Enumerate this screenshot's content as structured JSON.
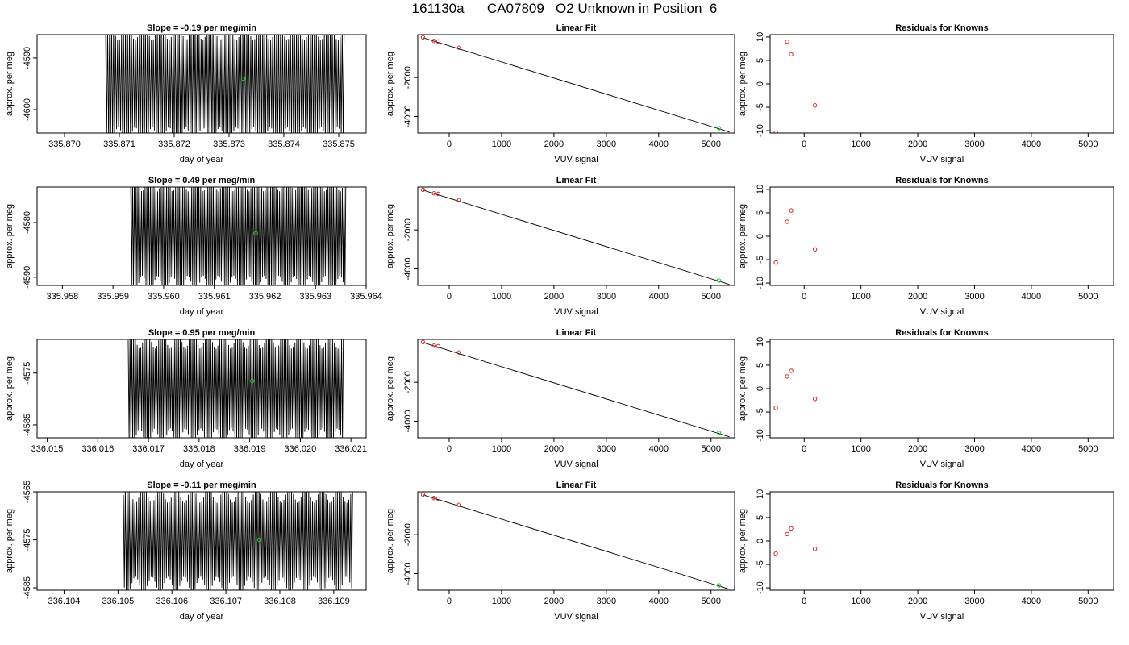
{
  "figure": {
    "title": "161130a      CA07809   O2 Unknown in Position  6"
  },
  "colors": {
    "trace": "#000000",
    "known_points": "#d62728",
    "unknown_point": "#22cc22",
    "fit_line": "#000000"
  },
  "chart_data": [
    {
      "type": "line",
      "title": "Slope =  -0.19  per meg/min",
      "xlabel": "day of year",
      "ylabel": "approx. per meg",
      "xlim": [
        335.8695,
        335.8755
      ],
      "ylim": [
        -4604.5,
        -4585.5
      ],
      "xticks": [
        {
          "v": 335.87,
          "label": "335.870"
        },
        {
          "v": 335.871,
          "label": "335.871"
        },
        {
          "v": 335.872,
          "label": "335.872"
        },
        {
          "v": 335.873,
          "label": "335.873"
        },
        {
          "v": 335.874,
          "label": "335.874"
        },
        {
          "v": 335.875,
          "label": "335.875"
        }
      ],
      "yticks": [
        {
          "v": -4590,
          "label": "-4590"
        },
        {
          "v": -4600,
          "label": "-4600"
        }
      ],
      "trace": {
        "x_start": 335.87075,
        "x_end": 335.8751,
        "cycles": 120,
        "center": -4595,
        "amplitude": 12,
        "note": "oscillating trace clipped at plot edges"
      },
      "unknown_point": {
        "x": 335.87326,
        "y": -4594.0
      }
    },
    {
      "type": "scatter",
      "title": "Linear Fit",
      "xlabel": "VUV signal",
      "ylabel": "approx. per meg",
      "xlim": [
        -600,
        5450
      ],
      "ylim": [
        -4850,
        200
      ],
      "xticks": [
        {
          "v": 0,
          "label": "0"
        },
        {
          "v": 1000,
          "label": "1000"
        },
        {
          "v": 2000,
          "label": "2000"
        },
        {
          "v": 3000,
          "label": "3000"
        },
        {
          "v": 4000,
          "label": "4000"
        },
        {
          "v": 5000,
          "label": "5000"
        }
      ],
      "yticks": [
        {
          "v": -2000,
          "label": "-2000"
        },
        {
          "v": -4000,
          "label": "-4000"
        }
      ],
      "fit_line": {
        "x": [
          -500,
          5350
        ],
        "y": [
          40,
          -4800
        ]
      },
      "knowns": {
        "x": [
          -500,
          -290,
          -210,
          190
        ],
        "y": [
          60,
          -120,
          -150,
          -470
        ]
      },
      "unknown_point": {
        "x": 5150,
        "y": -4600
      }
    },
    {
      "type": "scatter",
      "title": "Residuals for Knowns",
      "xlabel": "VUV signal",
      "ylabel": "approx. per meg",
      "xlim": [
        -600,
        5450
      ],
      "ylim": [
        -10.5,
        10.5
      ],
      "xticks": [
        {
          "v": 0,
          "label": "0"
        },
        {
          "v": 1000,
          "label": "1000"
        },
        {
          "v": 2000,
          "label": "2000"
        },
        {
          "v": 3000,
          "label": "3000"
        },
        {
          "v": 4000,
          "label": "4000"
        },
        {
          "v": 5000,
          "label": "5000"
        }
      ],
      "yticks": [
        {
          "v": 10,
          "label": "10"
        },
        {
          "v": 5,
          "label": "5"
        },
        {
          "v": 0,
          "label": "0"
        },
        {
          "v": -5,
          "label": "-5"
        },
        {
          "v": -10,
          "label": "-10"
        }
      ],
      "knowns": {
        "x": [
          -500,
          -300,
          -230,
          190
        ],
        "y": [
          -10.4,
          9.0,
          6.3,
          -4.6
        ]
      }
    },
    {
      "type": "line",
      "title": "Slope =  0.49  per meg/min",
      "xlabel": "day of year",
      "ylabel": "approx. per meg",
      "xlim": [
        335.9575,
        335.964
      ],
      "ylim": [
        -4591.5,
        -4573.5
      ],
      "xticks": [
        {
          "v": 335.958,
          "label": "335.958"
        },
        {
          "v": 335.959,
          "label": "335.959"
        },
        {
          "v": 335.96,
          "label": "335.960"
        },
        {
          "v": 335.961,
          "label": "335.961"
        },
        {
          "v": 335.962,
          "label": "335.962"
        },
        {
          "v": 335.963,
          "label": "335.963"
        },
        {
          "v": 335.964,
          "label": "335.964"
        }
      ],
      "yticks": [
        {
          "v": -4580,
          "label": "-4580"
        },
        {
          "v": -4590,
          "label": "-4590"
        }
      ],
      "trace": {
        "x_start": 335.95935,
        "x_end": 335.9636,
        "cycles": 120,
        "center": -4582,
        "amplitude": 11,
        "note": "oscillating trace clipped at plot edges"
      },
      "unknown_point": {
        "x": 335.96182,
        "y": -4582.0
      }
    },
    {
      "type": "scatter",
      "title": "Linear Fit",
      "xlabel": "VUV signal",
      "ylabel": "approx. per meg",
      "xlim": [
        -600,
        5450
      ],
      "ylim": [
        -4850,
        200
      ],
      "xticks": [
        {
          "v": 0,
          "label": "0"
        },
        {
          "v": 1000,
          "label": "1000"
        },
        {
          "v": 2000,
          "label": "2000"
        },
        {
          "v": 3000,
          "label": "3000"
        },
        {
          "v": 4000,
          "label": "4000"
        },
        {
          "v": 5000,
          "label": "5000"
        }
      ],
      "yticks": [
        {
          "v": -2000,
          "label": "-2000"
        },
        {
          "v": -4000,
          "label": "-4000"
        }
      ],
      "fit_line": {
        "x": [
          -500,
          5350
        ],
        "y": [
          40,
          -4800
        ]
      },
      "knowns": {
        "x": [
          -500,
          -290,
          -210,
          190
        ],
        "y": [
          60,
          -120,
          -150,
          -470
        ]
      },
      "unknown_point": {
        "x": 5150,
        "y": -4600
      }
    },
    {
      "type": "scatter",
      "title": "Residuals for Knowns",
      "xlabel": "VUV signal",
      "ylabel": "approx. per meg",
      "xlim": [
        -600,
        5450
      ],
      "ylim": [
        -10.5,
        10.5
      ],
      "xticks": [
        {
          "v": 0,
          "label": "0"
        },
        {
          "v": 1000,
          "label": "1000"
        },
        {
          "v": 2000,
          "label": "2000"
        },
        {
          "v": 3000,
          "label": "3000"
        },
        {
          "v": 4000,
          "label": "4000"
        },
        {
          "v": 5000,
          "label": "5000"
        }
      ],
      "yticks": [
        {
          "v": 10,
          "label": "10"
        },
        {
          "v": 5,
          "label": "5"
        },
        {
          "v": 0,
          "label": "0"
        },
        {
          "v": -5,
          "label": "-5"
        },
        {
          "v": -10,
          "label": "-10"
        }
      ],
      "knowns": {
        "x": [
          -500,
          -300,
          -230,
          190
        ],
        "y": [
          -5.6,
          3.1,
          5.5,
          -2.8
        ]
      }
    },
    {
      "type": "line",
      "title": "Slope =  0.95  per meg/min",
      "xlabel": "day of year",
      "ylabel": "approx. per meg",
      "xlim": [
        336.0148,
        336.0213
      ],
      "ylim": [
        -4587.5,
        -4568.5
      ],
      "xticks": [
        {
          "v": 336.015,
          "label": "336.015"
        },
        {
          "v": 336.016,
          "label": "336.016"
        },
        {
          "v": 336.017,
          "label": "336.017"
        },
        {
          "v": 336.018,
          "label": "336.018"
        },
        {
          "v": 336.019,
          "label": "336.019"
        },
        {
          "v": 336.02,
          "label": "336.020"
        },
        {
          "v": 336.021,
          "label": "336.021"
        }
      ],
      "yticks": [
        {
          "v": -4575,
          "label": "-4575"
        },
        {
          "v": -4585,
          "label": "-4585"
        }
      ],
      "trace": {
        "x_start": 336.0166,
        "x_end": 336.02085,
        "cycles": 120,
        "center": -4578,
        "amplitude": 11,
        "note": "oscillating trace clipped at plot edges"
      },
      "unknown_point": {
        "x": 336.01905,
        "y": -4576.5
      }
    },
    {
      "type": "scatter",
      "title": "Linear Fit",
      "xlabel": "VUV signal",
      "ylabel": "approx. per meg",
      "xlim": [
        -600,
        5450
      ],
      "ylim": [
        -4850,
        200
      ],
      "xticks": [
        {
          "v": 0,
          "label": "0"
        },
        {
          "v": 1000,
          "label": "1000"
        },
        {
          "v": 2000,
          "label": "2000"
        },
        {
          "v": 3000,
          "label": "3000"
        },
        {
          "v": 4000,
          "label": "4000"
        },
        {
          "v": 5000,
          "label": "5000"
        }
      ],
      "yticks": [
        {
          "v": -2000,
          "label": "-2000"
        },
        {
          "v": -4000,
          "label": "-4000"
        }
      ],
      "fit_line": {
        "x": [
          -500,
          5350
        ],
        "y": [
          40,
          -4800
        ]
      },
      "knowns": {
        "x": [
          -500,
          -290,
          -210,
          190
        ],
        "y": [
          60,
          -120,
          -150,
          -470
        ]
      },
      "unknown_point": {
        "x": 5150,
        "y": -4600
      }
    },
    {
      "type": "scatter",
      "title": "Residuals for Knowns",
      "xlabel": "VUV signal",
      "ylabel": "approx. per meg",
      "xlim": [
        -600,
        5450
      ],
      "ylim": [
        -10.5,
        10.5
      ],
      "xticks": [
        {
          "v": 0,
          "label": "0"
        },
        {
          "v": 1000,
          "label": "1000"
        },
        {
          "v": 2000,
          "label": "2000"
        },
        {
          "v": 3000,
          "label": "3000"
        },
        {
          "v": 4000,
          "label": "4000"
        },
        {
          "v": 5000,
          "label": "5000"
        }
      ],
      "yticks": [
        {
          "v": 10,
          "label": "10"
        },
        {
          "v": 5,
          "label": "5"
        },
        {
          "v": 0,
          "label": "0"
        },
        {
          "v": -5,
          "label": "-5"
        },
        {
          "v": -10,
          "label": "-10"
        }
      ],
      "knowns": {
        "x": [
          -500,
          -300,
          -230,
          190
        ],
        "y": [
          -4.1,
          2.6,
          3.8,
          -2.2
        ]
      }
    },
    {
      "type": "line",
      "title": "Slope =  -0.11  per meg/min",
      "xlabel": "day of year",
      "ylabel": "approx. per meg",
      "xlim": [
        336.1035,
        336.1096
      ],
      "ylim": [
        -4585.5,
        -4565.0
      ],
      "xticks": [
        {
          "v": 336.104,
          "label": "336.104"
        },
        {
          "v": 336.105,
          "label": "336.105"
        },
        {
          "v": 336.106,
          "label": "336.106"
        },
        {
          "v": 336.107,
          "label": "336.107"
        },
        {
          "v": 336.108,
          "label": "336.108"
        },
        {
          "v": 336.109,
          "label": "336.109"
        }
      ],
      "yticks": [
        {
          "v": -4565,
          "label": "-4565"
        },
        {
          "v": -4575,
          "label": "-4575"
        },
        {
          "v": -4585,
          "label": "-4585"
        }
      ],
      "trace": {
        "x_start": 336.1051,
        "x_end": 336.10935,
        "cycles": 120,
        "center": -4575,
        "amplitude": 11,
        "note": "oscillating trace clipped at plot edges"
      },
      "unknown_point": {
        "x": 336.10762,
        "y": -4575.0
      }
    },
    {
      "type": "scatter",
      "title": "Linear Fit",
      "xlabel": "VUV signal",
      "ylabel": "approx. per meg",
      "xlim": [
        -600,
        5450
      ],
      "ylim": [
        -4850,
        200
      ],
      "xticks": [
        {
          "v": 0,
          "label": "0"
        },
        {
          "v": 1000,
          "label": "1000"
        },
        {
          "v": 2000,
          "label": "2000"
        },
        {
          "v": 3000,
          "label": "3000"
        },
        {
          "v": 4000,
          "label": "4000"
        },
        {
          "v": 5000,
          "label": "5000"
        }
      ],
      "yticks": [
        {
          "v": -2000,
          "label": "-2000"
        },
        {
          "v": -4000,
          "label": "-4000"
        }
      ],
      "fit_line": {
        "x": [
          -500,
          5350
        ],
        "y": [
          40,
          -4800
        ]
      },
      "knowns": {
        "x": [
          -500,
          -290,
          -210,
          190
        ],
        "y": [
          60,
          -120,
          -150,
          -470
        ]
      },
      "unknown_point": {
        "x": 5150,
        "y": -4600
      }
    },
    {
      "type": "scatter",
      "title": "Residuals for Knowns",
      "xlabel": "VUV signal",
      "ylabel": "approx. per meg",
      "xlim": [
        -600,
        5450
      ],
      "ylim": [
        -10.5,
        10.5
      ],
      "xticks": [
        {
          "v": 0,
          "label": "0"
        },
        {
          "v": 1000,
          "label": "1000"
        },
        {
          "v": 2000,
          "label": "2000"
        },
        {
          "v": 3000,
          "label": "3000"
        },
        {
          "v": 4000,
          "label": "4000"
        },
        {
          "v": 5000,
          "label": "5000"
        }
      ],
      "yticks": [
        {
          "v": 10,
          "label": "10"
        },
        {
          "v": 5,
          "label": "5"
        },
        {
          "v": 0,
          "label": "0"
        },
        {
          "v": -5,
          "label": "-5"
        },
        {
          "v": -10,
          "label": "-10"
        }
      ],
      "knowns": {
        "x": [
          -500,
          -300,
          -230,
          190
        ],
        "y": [
          -2.7,
          1.5,
          2.7,
          -1.7
        ]
      }
    }
  ]
}
